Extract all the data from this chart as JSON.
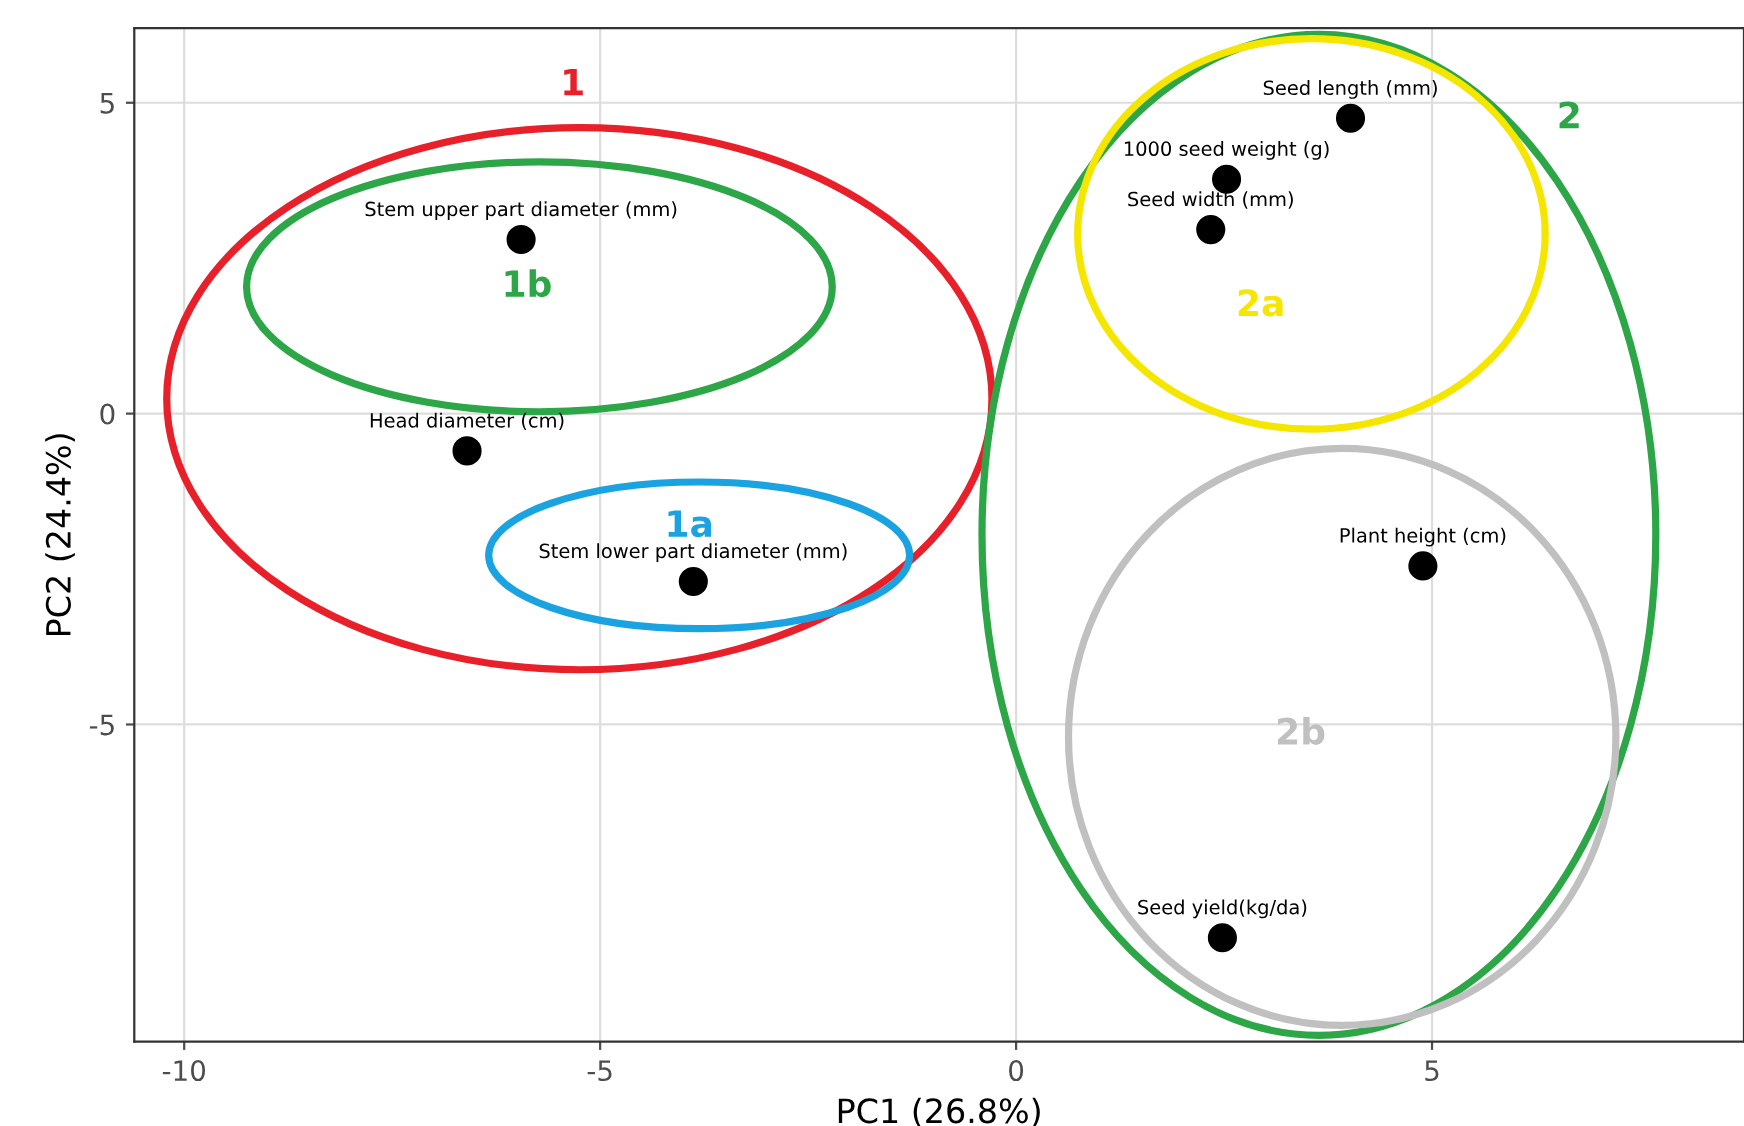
{
  "chart_data": {
    "type": "scatter",
    "xlabel": "PC1 (26.8%)",
    "ylabel": "PC2 (24.4%)",
    "xlim": [
      -10.6,
      8.75
    ],
    "ylim": [
      -10.1,
      6.2
    ],
    "xticks": [
      {
        "value": -10,
        "label": "-10"
      },
      {
        "value": -5,
        "label": "-5"
      },
      0,
      5
    ],
    "yticks": [
      {
        "value": -5,
        "label": "-5"
      },
      0,
      5
    ],
    "grid": true,
    "marker": "circle",
    "x": [
      4.02,
      2.53,
      2.34,
      -5.95,
      -6.6,
      -3.88,
      4.89,
      2.48
    ],
    "values": [
      4.75,
      3.77,
      2.96,
      2.8,
      -0.6,
      -2.7,
      -2.45,
      -8.43
    ],
    "color": "#000000",
    "annotations": [
      {
        "text": "Seed length (mm)",
        "x": 4.02,
        "y": 4.75
      },
      {
        "text": "1000 seed weight (g)",
        "x": 2.53,
        "y": 3.77
      },
      {
        "text": "Seed width (mm)",
        "x": 2.34,
        "y": 2.96
      },
      {
        "text": "Stem upper part diameter (mm)",
        "x": -5.95,
        "y": 2.8
      },
      {
        "text": "Head diameter (cm)",
        "x": -6.6,
        "y": -0.6
      },
      {
        "text": "Stem lower part diameter (mm)",
        "x": -3.88,
        "y": -2.7
      },
      {
        "text": "Plant height (cm)",
        "x": 4.89,
        "y": -2.45
      },
      {
        "text": "Seed yield(kg/da)",
        "x": 2.48,
        "y": -8.43
      },
      "1",
      "2",
      "1b",
      "1a",
      "2a",
      "2b"
    ]
  }
}
